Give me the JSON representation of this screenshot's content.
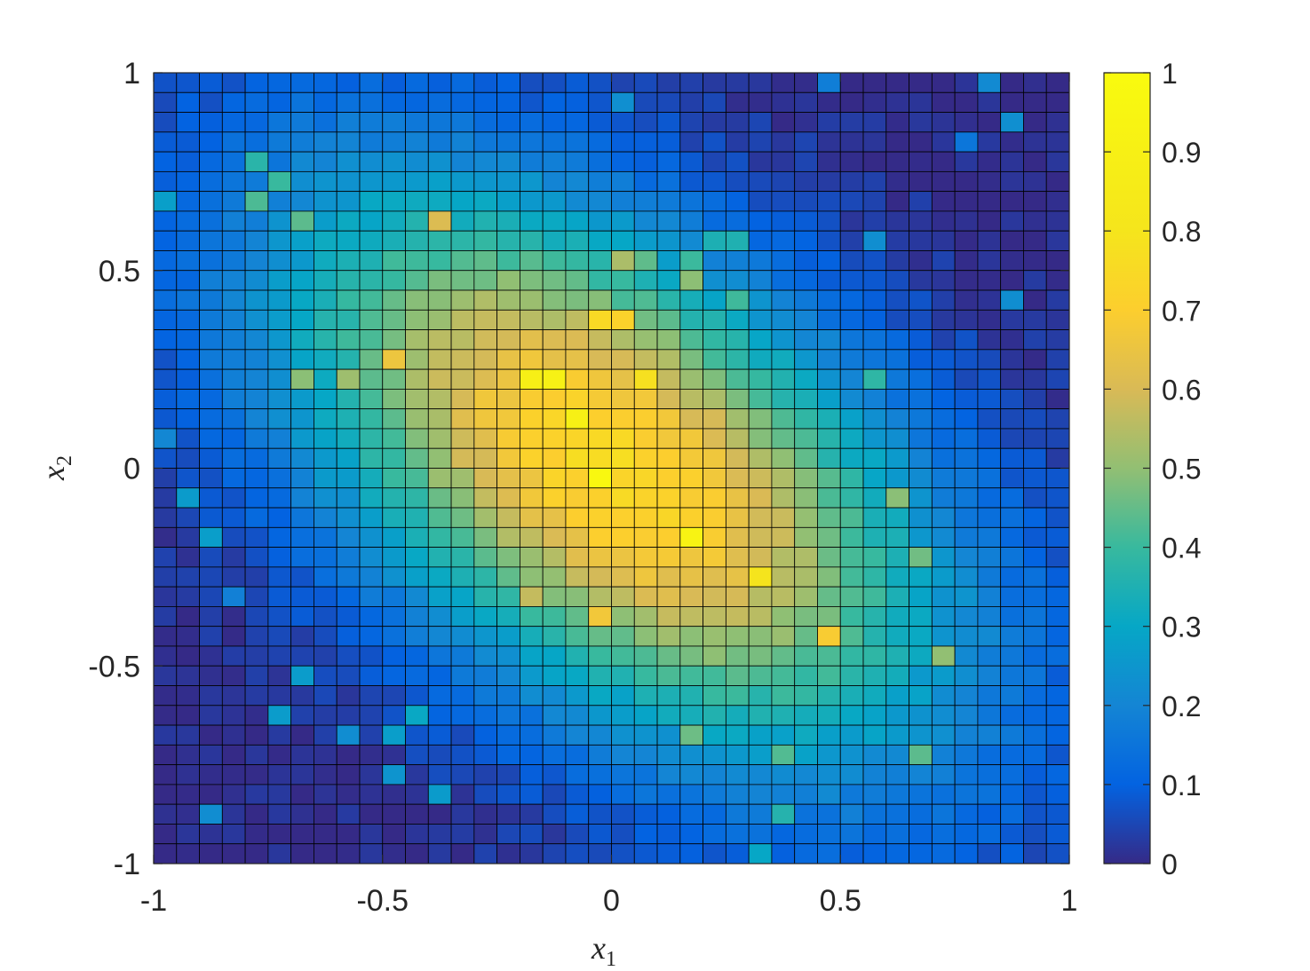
{
  "chart_data": {
    "type": "heatmap",
    "title": "",
    "xlabel": "x",
    "xlabel_sub": "1",
    "ylabel": "x",
    "ylabel_sub": "2",
    "xlim": [
      -1,
      1
    ],
    "ylim": [
      -1,
      1
    ],
    "x_ticks": [
      -1,
      -0.5,
      0,
      0.5,
      1
    ],
    "x_tick_labels": [
      "-1",
      "-0.5",
      "0",
      "0.5",
      "1"
    ],
    "y_ticks": [
      -1,
      -0.5,
      0,
      0.5,
      1
    ],
    "y_tick_labels": [
      "-1",
      "-0.5",
      "0",
      "0.5",
      "1"
    ],
    "colorbar": {
      "limits": [
        0,
        1
      ],
      "ticks": [
        0,
        0.1,
        0.2,
        0.3,
        0.4,
        0.5,
        0.6,
        0.7,
        0.8,
        0.9,
        1
      ],
      "tick_labels": [
        "0",
        "0.1",
        "0.2",
        "0.3",
        "0.4",
        "0.5",
        "0.6",
        "0.7",
        "0.8",
        "0.9",
        "1"
      ],
      "colormap": "parula",
      "location": "right"
    },
    "grid_size": [
      40,
      40
    ],
    "description": "Density peaked near (0.05, 0) with value about 0.75, elongated along the anti-diagonal (from upper-left to lower-right); near 0 in the upper-right and lower-left corners."
  },
  "colors": {
    "cell_edge": "#000000",
    "axis": "#262626",
    "background": "#ffffff"
  }
}
